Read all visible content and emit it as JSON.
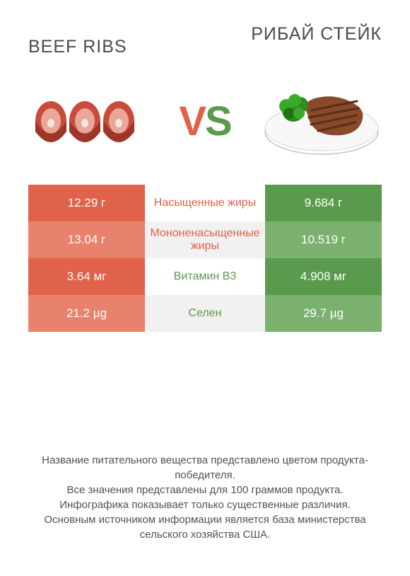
{
  "colors": {
    "left_product": "#e1624a",
    "right_product": "#5a9a4d",
    "left_bar_alt": "#e9826d",
    "right_bar_alt": "#7bb06f",
    "mid_bg_a": "#ffffff",
    "mid_bg_b": "#f1f1f1",
    "text_dark": "#4a4a4a",
    "footnote": "#525252"
  },
  "header": {
    "left_title": "Beef ribs",
    "right_title": "Рибай стейк"
  },
  "vs": {
    "v": "V",
    "s": "S"
  },
  "rows": [
    {
      "left": "12.29 г",
      "label": "Насыщенные жиры",
      "right": "9.684 г",
      "winner": "left"
    },
    {
      "left": "13.04 г",
      "label": "Мононенасыщенные жиры",
      "right": "10.519 г",
      "winner": "left"
    },
    {
      "left": "3.64 мг",
      "label": "Витамин B3",
      "right": "4.908 мг",
      "winner": "right"
    },
    {
      "left": "21.2 µg",
      "label": "Селен",
      "right": "29.7 µg",
      "winner": "right"
    }
  ],
  "footnotes": [
    "Название питательного вещества представлено цветом продукта-победителя.",
    "Все значения представлены для 100 граммов продукта.",
    "Инфографика показывает только существенные различия.",
    "Основным источником информации является база министерства сельского хозяйства США."
  ]
}
